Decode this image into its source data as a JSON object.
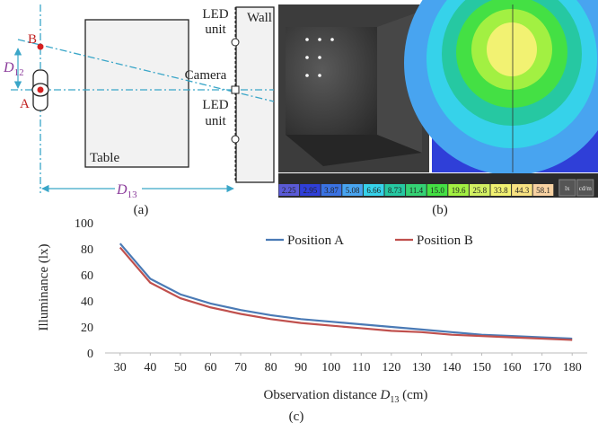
{
  "panel_a": {
    "point_b": "B",
    "point_a": "A",
    "d12": {
      "symbol": "D",
      "subscript": "12"
    },
    "d13": {
      "symbol": "D",
      "subscript": "13"
    },
    "table": "Table",
    "wall": "Wall",
    "led_top": [
      "LED",
      "unit"
    ],
    "camera": "Camera",
    "led_bottom": [
      "LED",
      "unit"
    ],
    "caption": "(a)"
  },
  "panel_b": {
    "colorbar": [
      {
        "label": "2.25",
        "color": "#5a5ad6"
      },
      {
        "label": "2.95",
        "color": "#2f3fd8"
      },
      {
        "label": "3.87",
        "color": "#3a72e2"
      },
      {
        "label": "5.08",
        "color": "#48a4f0"
      },
      {
        "label": "6.66",
        "color": "#36d2ea"
      },
      {
        "label": "8.73",
        "color": "#26c8a2"
      },
      {
        "label": "11.4",
        "color": "#34d274"
      },
      {
        "label": "15.0",
        "color": "#44e044"
      },
      {
        "label": "19.6",
        "color": "#a2f042"
      },
      {
        "label": "25.8",
        "color": "#d2f062"
      },
      {
        "label": "33.8",
        "color": "#f2f272"
      },
      {
        "label": "44.3",
        "color": "#f8e282"
      },
      {
        "label": "58.1",
        "color": "#f8d2a2"
      }
    ],
    "units": [
      "lx",
      "cd/m"
    ],
    "caption": "(b)"
  },
  "chart_data": {
    "type": "line",
    "ylabel": "Illuminance (lx)",
    "xlabel": {
      "text": "Observation distance ",
      "symbol": "D",
      "subscript": "13",
      "unit": " (cm)"
    },
    "x": [
      30,
      40,
      50,
      60,
      70,
      80,
      90,
      100,
      110,
      120,
      130,
      140,
      150,
      160,
      170,
      180
    ],
    "series": [
      {
        "name": "Position A",
        "color": "#4a7ab5",
        "values": [
          84,
          57,
          45,
          38,
          33,
          29,
          26,
          24,
          22,
          20,
          18,
          16,
          14,
          13,
          12,
          11
        ]
      },
      {
        "name": "Position B",
        "color": "#c0504d",
        "values": [
          81,
          54,
          42,
          35,
          30,
          26,
          23,
          21,
          19,
          17,
          16,
          14,
          13,
          12,
          11,
          10
        ]
      }
    ],
    "xlim": [
      25,
      185
    ],
    "ylim": [
      0,
      100
    ],
    "xticks": [
      30,
      40,
      50,
      60,
      70,
      80,
      90,
      100,
      110,
      120,
      130,
      140,
      150,
      160,
      170,
      180
    ],
    "yticks": [
      0,
      20,
      40,
      60,
      80,
      100
    ],
    "legend": "top",
    "grid": false,
    "caption": "(c)"
  }
}
